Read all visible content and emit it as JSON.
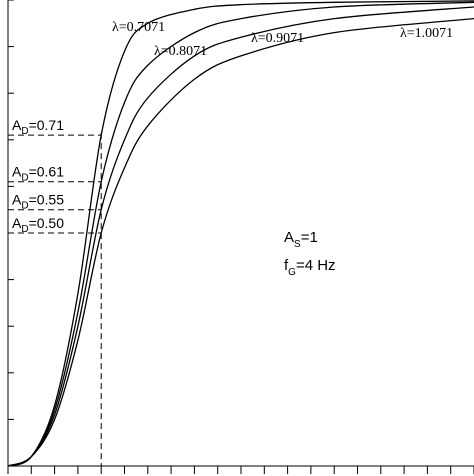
{
  "chart_data": {
    "type": "line",
    "title": "",
    "xlabel": "",
    "ylabel": "",
    "xlim": [
      0,
      20
    ],
    "ylim": [
      0,
      1
    ],
    "x_tick_step": 1,
    "y_tick_step": 0.1,
    "grid": false,
    "series": [
      {
        "name": "λ=0.7071",
        "values": [
          [
            0,
            0
          ],
          [
            1,
            0.02
          ],
          [
            2,
            0.13
          ],
          [
            3,
            0.37
          ],
          [
            4,
            0.71
          ],
          [
            5,
            0.89
          ],
          [
            6,
            0.95
          ],
          [
            8,
            0.98
          ],
          [
            10,
            0.99
          ],
          [
            14,
            0.995
          ],
          [
            20,
            0.998
          ]
        ]
      },
      {
        "name": "λ=0.8071",
        "values": [
          [
            0,
            0
          ],
          [
            1,
            0.02
          ],
          [
            2,
            0.12
          ],
          [
            3,
            0.33
          ],
          [
            4,
            0.61
          ],
          [
            5,
            0.78
          ],
          [
            6,
            0.86
          ],
          [
            8,
            0.93
          ],
          [
            10,
            0.96
          ],
          [
            14,
            0.985
          ],
          [
            20,
            0.995
          ]
        ]
      },
      {
        "name": "λ=0.9071",
        "values": [
          [
            0,
            0
          ],
          [
            1,
            0.02
          ],
          [
            2,
            0.11
          ],
          [
            3,
            0.3
          ],
          [
            4,
            0.55
          ],
          [
            5,
            0.7
          ],
          [
            6,
            0.79
          ],
          [
            8,
            0.88
          ],
          [
            10,
            0.92
          ],
          [
            14,
            0.96
          ],
          [
            20,
            0.985
          ]
        ]
      },
      {
        "name": "λ=1.0071",
        "values": [
          [
            0,
            0
          ],
          [
            1,
            0.02
          ],
          [
            2,
            0.1
          ],
          [
            3,
            0.27
          ],
          [
            4,
            0.5
          ],
          [
            5,
            0.64
          ],
          [
            6,
            0.73
          ],
          [
            8,
            0.83
          ],
          [
            10,
            0.88
          ],
          [
            14,
            0.93
          ],
          [
            20,
            0.96
          ]
        ]
      }
    ],
    "annotations": {
      "levels": [
        {
          "base": "A",
          "sub": "D",
          "rest": "=0.71",
          "value": 0.71
        },
        {
          "base": "A",
          "sub": "D",
          "rest": "=0.61",
          "value": 0.61
        },
        {
          "base": "A",
          "sub": "D",
          "rest": "=0.55",
          "value": 0.55
        },
        {
          "base": "A",
          "sub": "D",
          "rest": "=0.50",
          "value": 0.5
        }
      ],
      "vertical_marker_x": 4,
      "params": [
        {
          "base": "A",
          "sub": "S",
          "rest": "=1"
        },
        {
          "base": "f",
          "sub": "G",
          "rest": "=4 Hz"
        }
      ]
    }
  }
}
